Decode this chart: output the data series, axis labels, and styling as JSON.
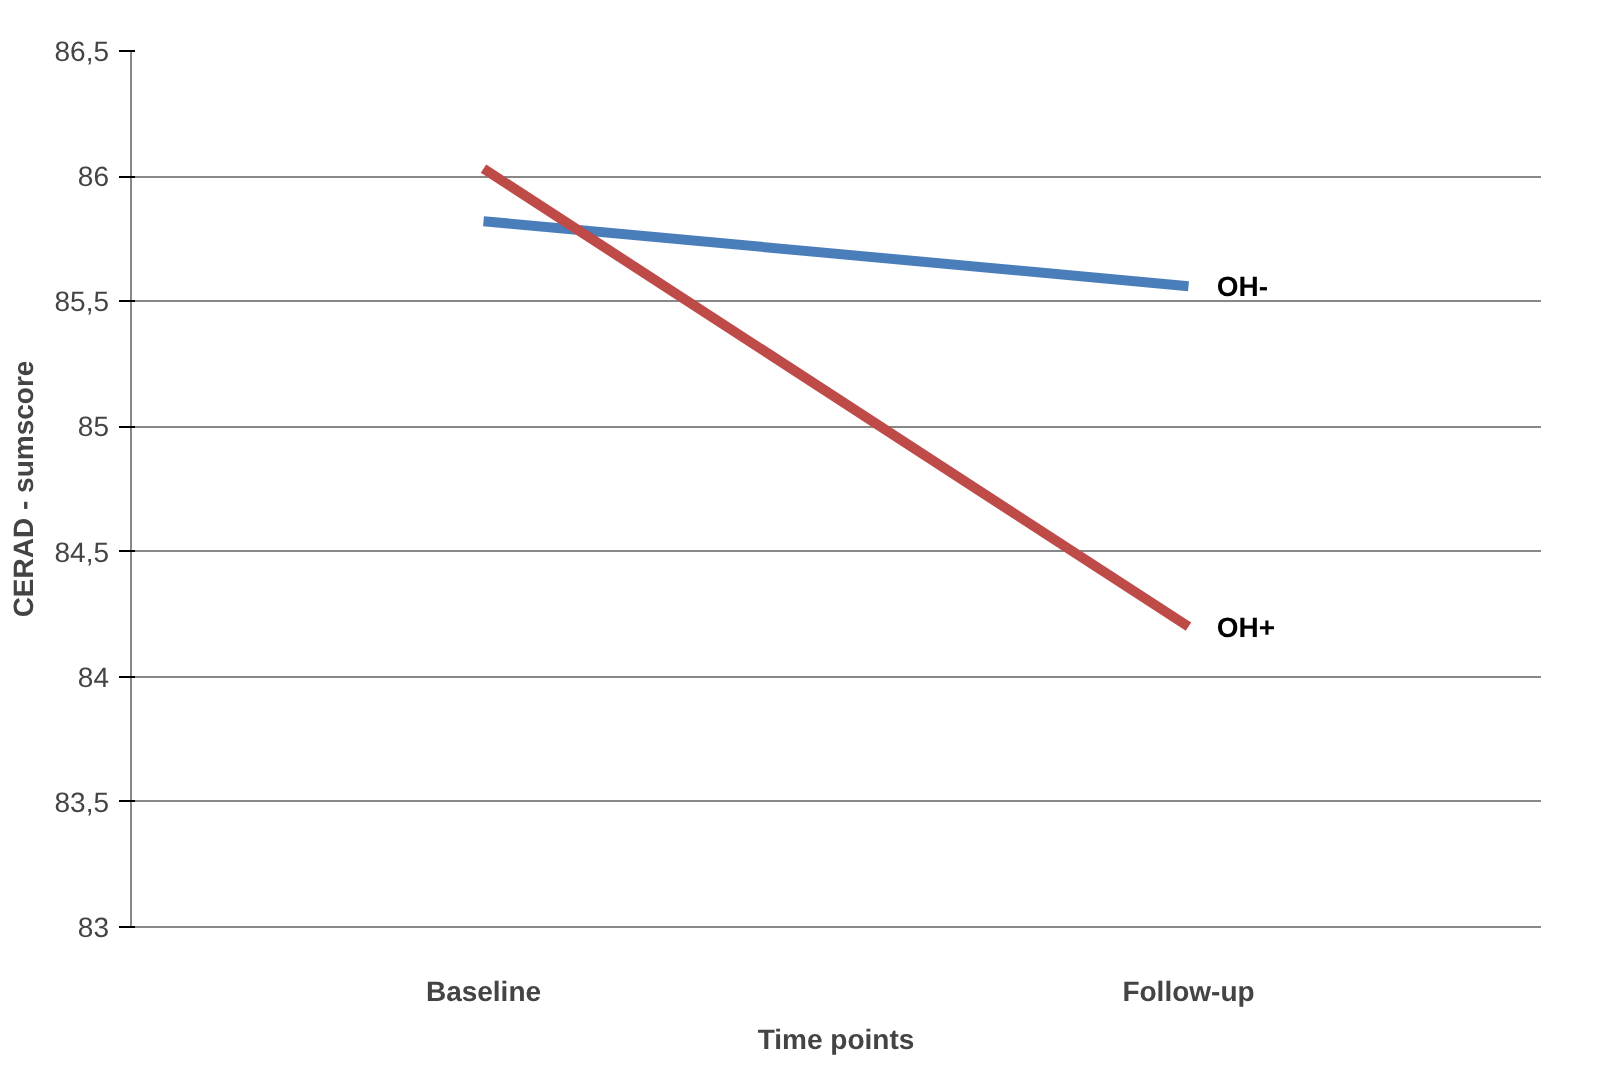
{
  "chart_data": {
    "type": "line",
    "xlabel": "Time points",
    "ylabel": "CERAD - sumscore",
    "categories": [
      "Baseline",
      "Follow-up"
    ],
    "series": [
      {
        "name": "OH-",
        "color": "#4a7ebb",
        "values": [
          85.82,
          85.56
        ]
      },
      {
        "name": "OH+",
        "color": "#be4b48",
        "values": [
          86.03,
          84.2
        ]
      }
    ],
    "ylim": [
      83,
      86.5
    ],
    "yticks": [
      {
        "value": 83,
        "label": "83"
      },
      {
        "value": 83.5,
        "label": "83,5"
      },
      {
        "value": 84,
        "label": "84"
      },
      {
        "value": 84.5,
        "label": "84,5"
      },
      {
        "value": 85,
        "label": "85"
      },
      {
        "value": 85.5,
        "label": "85,5"
      },
      {
        "value": 86,
        "label": "86"
      },
      {
        "value": 86.5,
        "label": "86,5"
      }
    ],
    "grid": "y",
    "legend": false,
    "marker": "none",
    "line_style": "solid"
  }
}
